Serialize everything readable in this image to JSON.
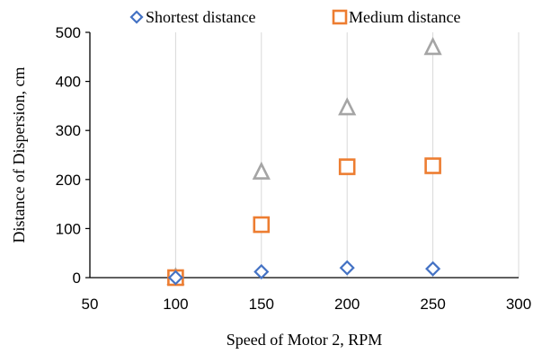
{
  "chart_data": {
    "type": "scatter",
    "title": "",
    "xlabel": "Speed of Motor 2, RPM",
    "ylabel": "Distance of  Dispersion, cm",
    "xlim": [
      50,
      300
    ],
    "ylim": [
      0,
      500
    ],
    "x_ticks": [
      "50",
      "100",
      "150",
      "200",
      "250",
      "300"
    ],
    "y_ticks": [
      "0",
      "100",
      "200",
      "300",
      "400",
      "500"
    ],
    "grid": "vertical",
    "legend_position": "top",
    "series": [
      {
        "name": "Shortest distance",
        "marker": "diamond",
        "color": "#4472C4",
        "in_legend": true,
        "points": [
          [
            100,
            0
          ],
          [
            150,
            12
          ],
          [
            200,
            20
          ],
          [
            250,
            18
          ]
        ]
      },
      {
        "name": "Medium distance",
        "marker": "square",
        "color": "#ED7D31",
        "in_legend": true,
        "points": [
          [
            100,
            0
          ],
          [
            150,
            108
          ],
          [
            200,
            226
          ],
          [
            250,
            228
          ]
        ]
      },
      {
        "marker": "triangle",
        "color": "#A5A5A5",
        "in_legend": false,
        "points": [
          [
            100,
            0
          ],
          [
            150,
            215
          ],
          [
            200,
            346
          ],
          [
            250,
            469
          ]
        ]
      }
    ]
  }
}
